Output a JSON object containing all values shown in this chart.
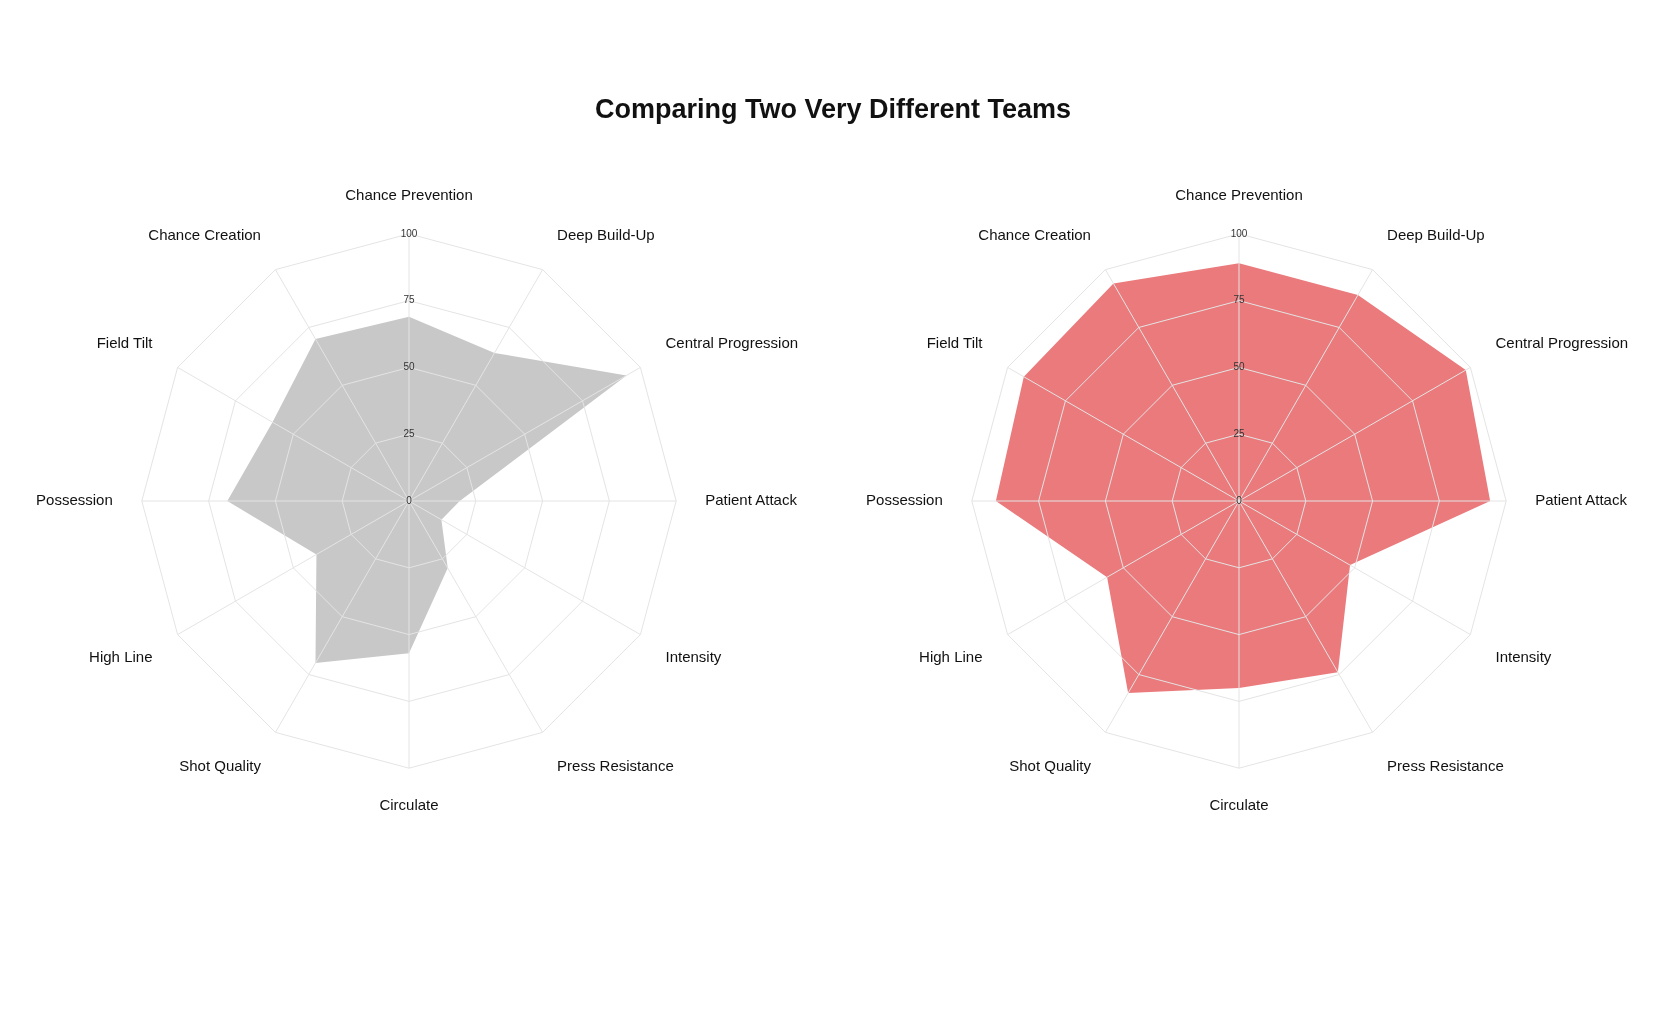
{
  "chart_data": [
    {
      "type": "radar",
      "title": "Comparing Two Very Different Teams",
      "categories": [
        "Chance Prevention",
        "Deep Build-Up",
        "Central Progression",
        "Patient Attack",
        "Intensity",
        "Press Resistance",
        "Circulate",
        "Shot Quality",
        "High Line",
        "Possession",
        "Field Tilt",
        "Chance Creation"
      ],
      "series": [
        {
          "color": "#c8c8c8",
          "values": [
            69,
            64,
            94,
            19,
            14,
            29,
            57,
            70,
            40,
            68,
            59,
            70
          ]
        }
      ],
      "ylim": [
        0,
        100
      ],
      "yticks": [
        0,
        25,
        50,
        75,
        100
      ],
      "grid": true,
      "legend": false,
      "marker": "none"
    },
    {
      "type": "radar",
      "categories": [
        "Chance Prevention",
        "Deep Build-Up",
        "Central Progression",
        "Patient Attack",
        "Intensity",
        "Press Resistance",
        "Circulate",
        "Shot Quality",
        "High Line",
        "Possession",
        "Field Tilt",
        "Chance Creation"
      ],
      "series": [
        {
          "color": "#ea7a7c",
          "values": [
            89,
            89,
            98,
            94,
            48,
            74,
            70,
            83,
            57,
            91,
            93,
            94
          ]
        }
      ],
      "ylim": [
        0,
        100
      ],
      "yticks": [
        0,
        25,
        50,
        75,
        100
      ],
      "grid": true,
      "legend": false,
      "marker": "none"
    }
  ]
}
